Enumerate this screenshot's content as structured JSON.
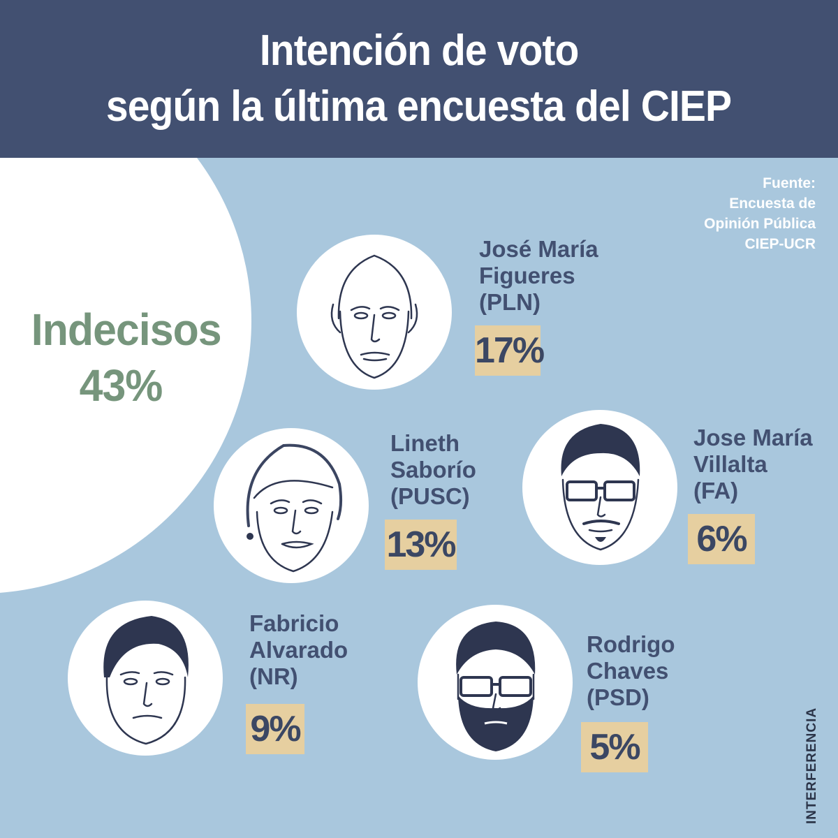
{
  "header": {
    "line1": "Intención de voto",
    "line2": "según la última encuesta del CIEP"
  },
  "undecided": {
    "label": "Indecisos",
    "value": "43%"
  },
  "source": {
    "line1": "Fuente:",
    "line2": "Encuesta de",
    "line3": "Opinión Pública",
    "line4": "CIEP-UCR"
  },
  "candidates": [
    {
      "name": "José María\nFigueres\n(PLN)",
      "pct": "17%"
    },
    {
      "name": "Lineth\nSaborío\n(PUSC)",
      "pct": "13%"
    },
    {
      "name": "Jose María\nVillalta\n(FA)",
      "pct": "6%"
    },
    {
      "name": "Fabricio\nAlvarado\n(NR)",
      "pct": "9%"
    },
    {
      "name": "Rodrigo\nChaves\n(PSD)",
      "pct": "5%"
    }
  ],
  "brand": {
    "label": "INTERFERENCIA"
  },
  "colors": {
    "header_bg": "#425071",
    "body_bg": "#a9c7dd",
    "undecided_text": "#76957c",
    "badge_bg": "#e6cfa0",
    "candidate_text": "#425071"
  }
}
